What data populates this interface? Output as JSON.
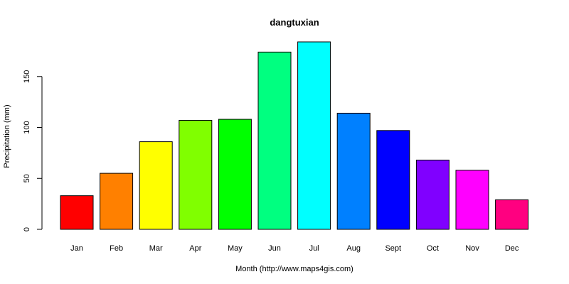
{
  "chart_data": {
    "type": "bar",
    "title": "dangtuxian",
    "xlabel": "Month (http://www.maps4gis.com)",
    "ylabel": "Precipitation (mm)",
    "categories": [
      "Jan",
      "Feb",
      "Mar",
      "Apr",
      "May",
      "Jun",
      "Jul",
      "Aug",
      "Sept",
      "Oct",
      "Nov",
      "Dec"
    ],
    "values": [
      33,
      55,
      86,
      107,
      108,
      174,
      184,
      114,
      97,
      68,
      58,
      29
    ],
    "colors": [
      "#FF0000",
      "#FF8000",
      "#FFFF00",
      "#80FF00",
      "#00FF00",
      "#00FF80",
      "#00FFFF",
      "#0080FF",
      "#0000FF",
      "#8000FF",
      "#FF00FF",
      "#FF0080"
    ],
    "ylim": [
      0,
      184
    ],
    "yticks": [
      0,
      50,
      100,
      150
    ],
    "grid": false,
    "legend": "none"
  }
}
